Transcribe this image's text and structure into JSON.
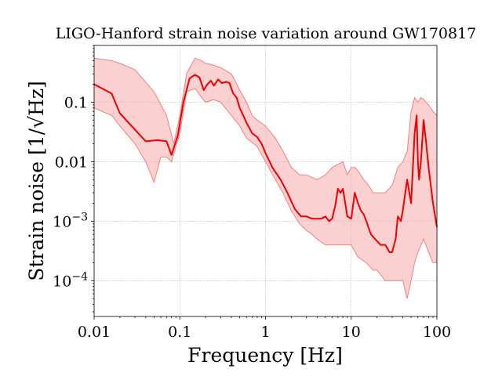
{
  "chart_data": {
    "type": "area",
    "title": "LIGO-Hanford strain noise variation around GW170817",
    "xlabel": "Frequency [Hz]",
    "ylabel": "Strain noise [1/√Hz]",
    "x_scale": "log",
    "y_scale": "log",
    "xlim": [
      0.01,
      100
    ],
    "ylim": [
      2.5e-05,
      0.9
    ],
    "grid": true,
    "x_ticks": [
      {
        "value": 0.01,
        "label": "0.01"
      },
      {
        "value": 0.1,
        "label": "0.1"
      },
      {
        "value": 1,
        "label": "1"
      },
      {
        "value": 10,
        "label": "10"
      },
      {
        "value": 100,
        "label": "100"
      }
    ],
    "y_ticks": [
      {
        "value": 0.1,
        "label": "0.1",
        "exp": ""
      },
      {
        "value": 0.01,
        "label": "0.01",
        "exp": ""
      },
      {
        "value": 0.001,
        "label": "10",
        "exp": "−3"
      },
      {
        "value": 0.0001,
        "label": "10",
        "exp": "−4"
      }
    ],
    "colors": {
      "median": "#ee0000",
      "band": "#f8aaaa",
      "band_edge": "#f08080"
    },
    "series": [
      {
        "role": "median",
        "x": [
          0.01,
          0.016,
          0.02,
          0.04,
          0.055,
          0.07,
          0.08,
          0.095,
          0.11,
          0.13,
          0.15,
          0.17,
          0.19,
          0.21,
          0.23,
          0.25,
          0.28,
          0.31,
          0.35,
          0.38,
          0.42,
          0.46,
          0.5,
          0.55,
          0.6,
          0.7,
          0.8,
          0.9,
          1.0,
          1.2,
          1.5,
          1.8,
          2.2,
          2.6,
          3.0,
          3.5,
          4.0,
          4.5,
          5.0,
          5.5,
          6.0,
          6.5,
          7.0,
          7.5,
          8.0,
          9.0,
          10,
          11,
          12,
          13,
          14,
          15,
          17,
          19,
          22,
          25,
          28,
          30,
          33,
          35,
          38,
          40,
          45,
          50,
          55,
          58,
          60,
          62,
          65,
          70,
          75,
          80,
          90,
          100
        ],
        "y": [
          0.2,
          0.14,
          0.065,
          0.022,
          0.023,
          0.022,
          0.013,
          0.028,
          0.1,
          0.25,
          0.29,
          0.26,
          0.16,
          0.2,
          0.23,
          0.19,
          0.24,
          0.21,
          0.22,
          0.21,
          0.14,
          0.12,
          0.08,
          0.06,
          0.045,
          0.03,
          0.026,
          0.02,
          0.014,
          0.008,
          0.005,
          0.003,
          0.0016,
          0.0012,
          0.0012,
          0.0011,
          0.0011,
          0.0011,
          0.0012,
          0.001,
          0.0011,
          0.0018,
          0.0035,
          0.003,
          0.0035,
          0.0012,
          0.0011,
          0.003,
          0.002,
          0.0015,
          0.0013,
          0.001,
          0.0006,
          0.0005,
          0.0004,
          0.0004,
          0.0003,
          0.0003,
          0.0005,
          0.0012,
          0.001,
          0.0015,
          0.005,
          0.002,
          0.03,
          0.06,
          0.01,
          0.005,
          0.01,
          0.05,
          0.02,
          0.008,
          0.002,
          0.0008
        ]
      },
      {
        "role": "band_upper",
        "x": [
          0.01,
          0.016,
          0.02,
          0.03,
          0.05,
          0.07,
          0.085,
          0.1,
          0.12,
          0.15,
          0.18,
          0.2,
          0.25,
          0.3,
          0.4,
          0.5,
          0.6,
          0.7,
          0.8,
          1.0,
          1.3,
          1.6,
          2.0,
          2.5,
          3.0,
          4.0,
          5.0,
          6.0,
          7.0,
          8.0,
          9.0,
          10,
          11,
          12,
          14,
          16,
          18,
          20,
          25,
          30,
          35,
          40,
          45,
          50,
          55,
          60,
          65,
          70,
          80,
          90,
          100
        ],
        "y": [
          0.55,
          0.5,
          0.45,
          0.35,
          0.15,
          0.06,
          0.02,
          0.06,
          0.3,
          0.55,
          0.5,
          0.45,
          0.42,
          0.38,
          0.3,
          0.16,
          0.1,
          0.06,
          0.05,
          0.04,
          0.025,
          0.015,
          0.008,
          0.006,
          0.006,
          0.005,
          0.006,
          0.008,
          0.009,
          0.01,
          0.006,
          0.008,
          0.008,
          0.007,
          0.005,
          0.004,
          0.003,
          0.003,
          0.003,
          0.004,
          0.008,
          0.01,
          0.015,
          0.07,
          0.12,
          0.1,
          0.12,
          0.11,
          0.09,
          0.07,
          0.06
        ]
      },
      {
        "role": "band_lower",
        "x": [
          0.01,
          0.016,
          0.02,
          0.03,
          0.04,
          0.05,
          0.06,
          0.07,
          0.08,
          0.1,
          0.12,
          0.15,
          0.18,
          0.2,
          0.25,
          0.3,
          0.4,
          0.5,
          0.6,
          0.8,
          1.0,
          1.3,
          1.6,
          2.0,
          2.5,
          3.0,
          3.5,
          4.0,
          5.0,
          6.0,
          7.0,
          8.0,
          10,
          12,
          15,
          18,
          20,
          25,
          30,
          35,
          40,
          45,
          50,
          55,
          60,
          70,
          80,
          90,
          100
        ],
        "y": [
          0.08,
          0.06,
          0.04,
          0.02,
          0.01,
          0.0045,
          0.012,
          0.012,
          0.01,
          0.03,
          0.15,
          0.17,
          0.12,
          0.1,
          0.11,
          0.1,
          0.06,
          0.04,
          0.025,
          0.018,
          0.01,
          0.005,
          0.003,
          0.0015,
          0.0009,
          0.0007,
          0.0006,
          0.0005,
          0.0004,
          0.0004,
          0.0004,
          0.0004,
          0.0004,
          0.00025,
          0.0002,
          0.00015,
          0.00015,
          0.0001,
          0.0001,
          0.0001,
          0.0001,
          5e-05,
          0.0001,
          0.0002,
          0.0003,
          0.0005,
          0.0003,
          0.0002,
          0.0002
        ]
      }
    ]
  }
}
